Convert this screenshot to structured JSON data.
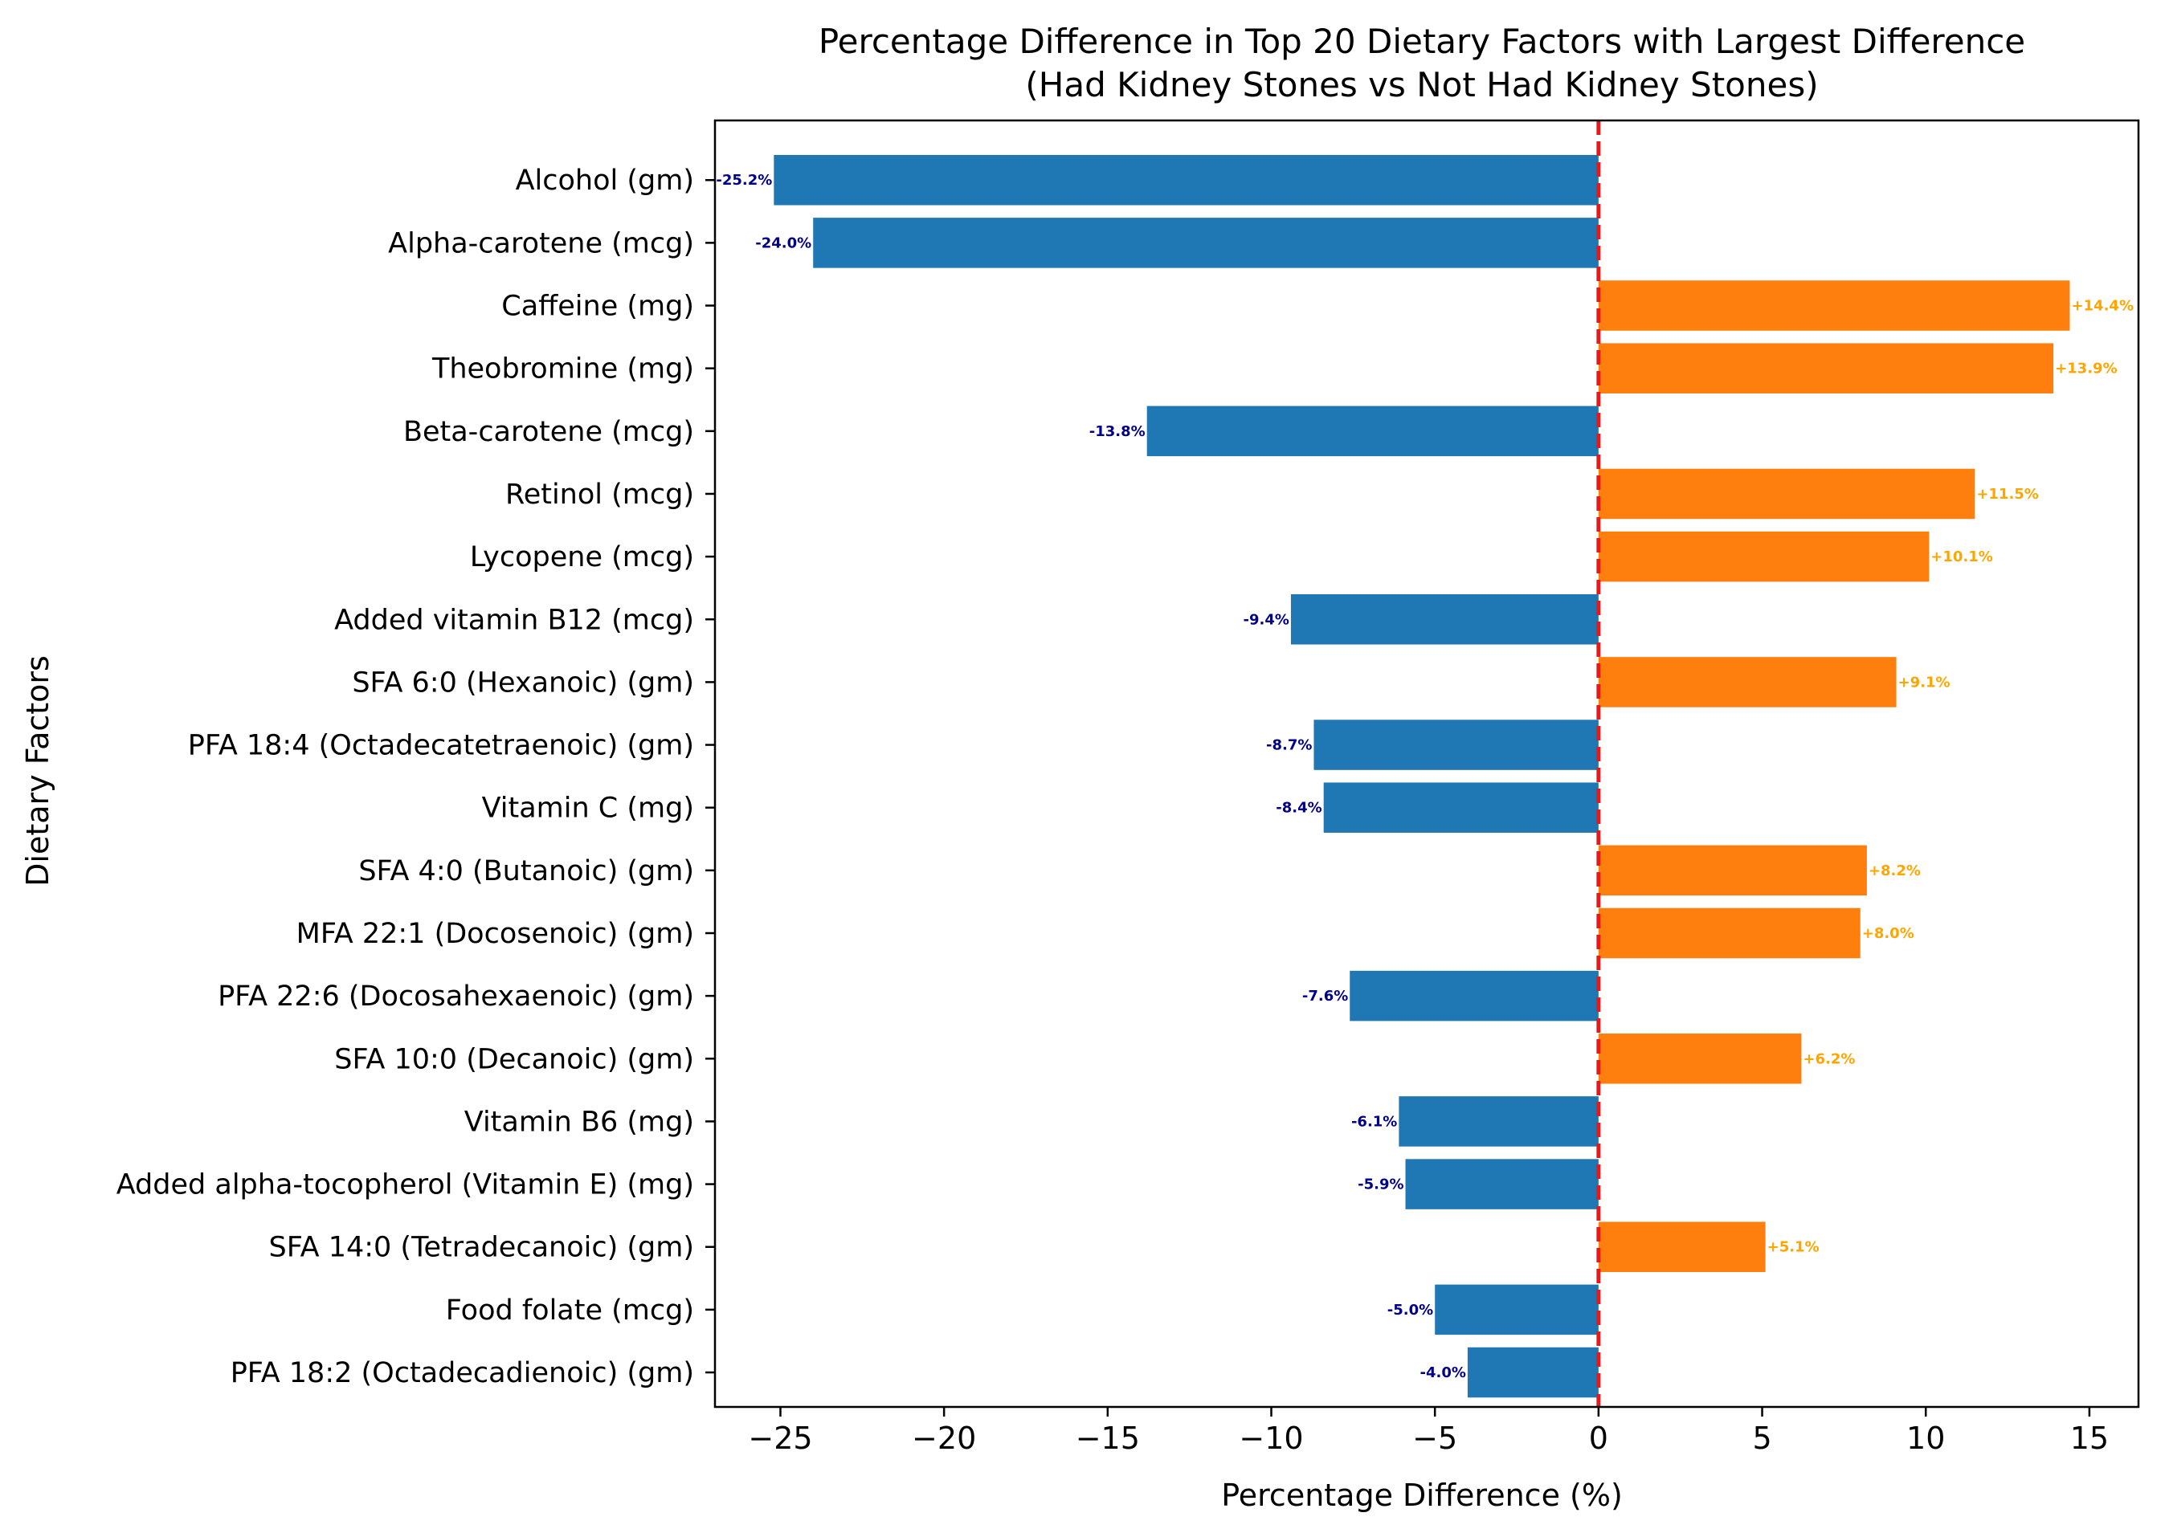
{
  "chart_data": {
    "type": "bar",
    "orientation": "horizontal",
    "title": "Percentage Difference in Top 20 Dietary Factors with Largest Difference",
    "subtitle": "(Had Kidney Stones vs Not Had Kidney Stones)",
    "xlabel": "Percentage Difference (%)",
    "ylabel": "Dietary Factors",
    "xlim": [
      -27.0,
      16.5
    ],
    "xticks": [
      -25,
      -20,
      -15,
      -10,
      -5,
      0,
      5,
      10,
      15
    ],
    "xtick_labels": [
      "−25",
      "−20",
      "−15",
      "−10",
      "−5",
      "0",
      "5",
      "10",
      "15"
    ],
    "grid": false,
    "reference_line": {
      "x": 0,
      "color": "#e8191c",
      "style": "dashed"
    },
    "colors": {
      "negative": "#1f77b4",
      "positive": "#ff7f0e",
      "negative_label": "#00008b",
      "positive_label": "#ffa500"
    },
    "categories": [
      "Alcohol (gm)",
      "Alpha-carotene (mcg)",
      "Caffeine (mg)",
      "Theobromine (mg)",
      "Beta-carotene (mcg)",
      "Retinol (mcg)",
      "Lycopene (mcg)",
      "Added vitamin B12 (mcg)",
      "SFA 6:0 (Hexanoic) (gm)",
      "PFA 18:4 (Octadecatetraenoic) (gm)",
      "Vitamin C (mg)",
      "SFA 4:0 (Butanoic) (gm)",
      "MFA 22:1 (Docosenoic) (gm)",
      "PFA 22:6 (Docosahexaenoic) (gm)",
      "SFA 10:0 (Decanoic) (gm)",
      "Vitamin B6 (mg)",
      "Added alpha-tocopherol (Vitamin E) (mg)",
      "SFA 14:0 (Tetradecanoic) (gm)",
      "Food folate (mcg)",
      "PFA 18:2 (Octadecadienoic) (gm)"
    ],
    "values": [
      -25.2,
      -24.0,
      14.4,
      13.9,
      -13.8,
      11.5,
      10.1,
      -9.4,
      9.1,
      -8.7,
      -8.4,
      8.2,
      8.0,
      -7.6,
      6.2,
      -6.1,
      -5.9,
      5.1,
      -5.0,
      -4.0
    ],
    "data_labels": [
      "-25.2%",
      "-24.0%",
      "+14.4%",
      "+13.9%",
      "-13.8%",
      "+11.5%",
      "+10.1%",
      "-9.4%",
      "+9.1%",
      "-8.7%",
      "-8.4%",
      "+8.2%",
      "+8.0%",
      "-7.6%",
      "+6.2%",
      "-6.1%",
      "-5.9%",
      "+5.1%",
      "-5.0%",
      "-4.0%"
    ]
  }
}
